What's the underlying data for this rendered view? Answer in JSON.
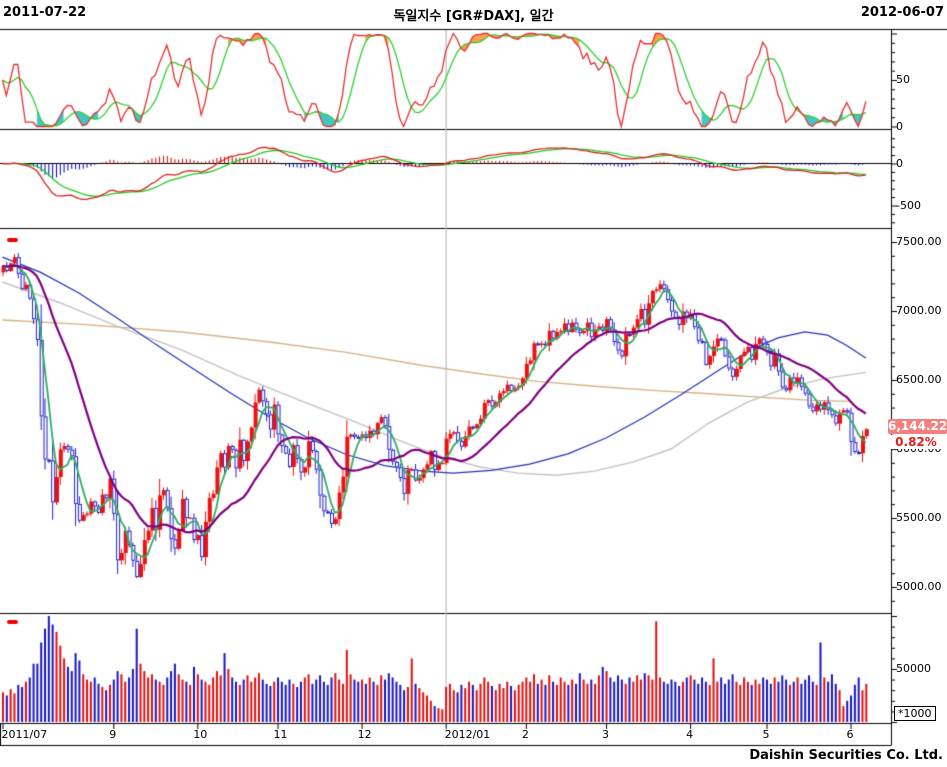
{
  "header": {
    "left_date": "2011-07-22",
    "title": "독일지수 [GR#DAX], 일간",
    "right_date": "2012-06-07"
  },
  "footer": {
    "company": "Daishin Securities Co. Ltd."
  },
  "price_badge": {
    "last_price": "6,144.22",
    "change_pct": "0.82%"
  },
  "volume_unit": "*1000",
  "chart_data": {
    "type": "candlestick-multi-panel",
    "instrument": "독일지수 [GR#DAX]",
    "period": "일간",
    "date_range": [
      "2011-07-22",
      "2012-06-07"
    ],
    "panels": [
      "stochastic-oscillator",
      "macd",
      "price-candles",
      "volume"
    ],
    "stoch_axis": {
      "labels": [
        {
          "text": "50",
          "v": 50
        },
        {
          "text": "0",
          "v": 0
        }
      ],
      "range": [
        0,
        100
      ]
    },
    "macd_axis": {
      "labels": [
        {
          "text": "0",
          "v": 0
        },
        {
          "text": "-500",
          "v": -500
        }
      ]
    },
    "price_axis": {
      "labels": [
        {
          "text": "7500.00",
          "v": 7500
        },
        {
          "text": "7000.00",
          "v": 7000
        },
        {
          "text": "6500.00",
          "v": 6500
        },
        {
          "text": "6000.00",
          "v": 6000
        },
        {
          "text": "5500.00",
          "v": 5500
        },
        {
          "text": "5000.00",
          "v": 5000
        }
      ]
    },
    "volume_axis": {
      "labels": [
        {
          "text": "50000",
          "v": 50
        }
      ]
    },
    "x_axis": {
      "year_divider_index": 116,
      "labels": [
        {
          "text": "2011/07",
          "i": 0,
          "align": "left"
        },
        {
          "text": "9",
          "i": 29
        },
        {
          "text": "10",
          "i": 51
        },
        {
          "text": "11",
          "i": 72
        },
        {
          "text": "12",
          "i": 94
        },
        {
          "text": "2012/01",
          "i": 116,
          "align": "left"
        },
        {
          "text": "2",
          "i": 137
        },
        {
          "text": "3",
          "i": 158
        },
        {
          "text": "4",
          "i": 180
        },
        {
          "text": "5",
          "i": 200
        },
        {
          "text": "6",
          "i": 222
        }
      ]
    },
    "closes": [
      7326,
      7290,
      7345,
      7390,
      7270,
      7158,
      7190,
      7090,
      6940,
      6790,
      6236,
      5923,
      5917,
      5613,
      5797,
      5997,
      6022,
      5995,
      5948,
      5602,
      5480,
      5522,
      5532,
      5620,
      5584,
      5537,
      5670,
      5643,
      5785,
      5530,
      5193,
      5246,
      5408,
      5304,
      5190,
      5072,
      5166,
      5340,
      5408,
      5573,
      5415,
      5664,
      5702,
      5571,
      5346,
      5278,
      5405,
      5639,
      5499,
      5502,
      5340,
      5376,
      5216,
      5473,
      5645,
      5675,
      5867,
      5970,
      5865,
      6022,
      5994,
      5859,
      6067,
      5913,
      6055,
      6155,
      6337,
      6430,
      6346,
      6251,
      6141,
      6322,
      6106,
      6021,
      5966,
      5870,
      6028,
      5928,
      5829,
      5867,
      6057,
      5985,
      5850,
      5662,
      5548,
      5537,
      5457,
      5492,
      5685,
      5800,
      6089,
      6105,
      6088,
      6080,
      6106,
      6080,
      6133,
      6106,
      6188,
      6231,
      6166,
      5994,
      5907,
      5867,
      5790,
      5675,
      5847,
      5852,
      5771,
      5790,
      5852,
      5889,
      5986,
      5848,
      5898,
      5898,
      6075,
      6111,
      6122,
      6058,
      6017,
      6092,
      6163,
      6152,
      6179,
      6220,
      6333,
      6354,
      6308,
      6339,
      6404,
      6419,
      6466,
      6419,
      6444,
      6459,
      6512,
      6617,
      6642,
      6766,
      6754,
      6764,
      6749,
      6856,
      6800,
      6848,
      6856,
      6910,
      6848,
      6916,
      6865,
      6840,
      6856,
      6916,
      6810,
      6865,
      6888,
      6856,
      6941,
      6866,
      6775,
      6714,
      6671,
      6834,
      6828,
      6880,
      6941,
      7015,
      6901,
      7056,
      7145,
      7157,
      7194,
      7158,
      7079,
      6996,
      6948,
      6899,
      6996,
      6947,
      6982,
      6882,
      6784,
      6775,
      6610,
      6674,
      6743,
      6801,
      6793,
      6671,
      6583,
      6523,
      6580,
      6674,
      6705,
      6739,
      6646,
      6761,
      6801,
      6762,
      6710,
      6598,
      6694,
      6561,
      6445,
      6425,
      6519,
      6476,
      6518,
      6451,
      6401,
      6308,
      6273,
      6324,
      6285,
      6339,
      6280,
      6244,
      6184,
      6264,
      6281,
      6264,
      6050,
      5978,
      5969,
      6094,
      6144
    ],
    "volumes_k": [
      28,
      25,
      31,
      27,
      35,
      33,
      38,
      42,
      55,
      55,
      75,
      88,
      100,
      92,
      85,
      72,
      60,
      52,
      48,
      65,
      58,
      45,
      40,
      38,
      42,
      36,
      33,
      30,
      35,
      40,
      48,
      45,
      38,
      42,
      50,
      88,
      55,
      48,
      42,
      45,
      40,
      38,
      35,
      42,
      48,
      55,
      45,
      40,
      38,
      35,
      52,
      45,
      40,
      38,
      35,
      42,
      48,
      44,
      65,
      50,
      42,
      38,
      35,
      40,
      44,
      38,
      42,
      46,
      40,
      36,
      34,
      38,
      42,
      38,
      35,
      40,
      36,
      33,
      38,
      42,
      45,
      36,
      40,
      44,
      38,
      35,
      42,
      46,
      40,
      36,
      68,
      45,
      40,
      38,
      40,
      36,
      42,
      38,
      35,
      44,
      40,
      46,
      42,
      38,
      35,
      30,
      33,
      60,
      36,
      32,
      28,
      25,
      20,
      15,
      13,
      12,
      33,
      36,
      30,
      28,
      35,
      32,
      38,
      35,
      30,
      36,
      42,
      38,
      34,
      30,
      36,
      32,
      38,
      34,
      30,
      35,
      38,
      42,
      38,
      45,
      36,
      40,
      35,
      44,
      38,
      35,
      42,
      38,
      35,
      40,
      36,
      46,
      40,
      36,
      40,
      36,
      44,
      52,
      48,
      42,
      38,
      44,
      40,
      36,
      42,
      38,
      44,
      40,
      46,
      44,
      40,
      95,
      42,
      38,
      36,
      40,
      38,
      34,
      38,
      42,
      44,
      40,
      36,
      42,
      38,
      35,
      60,
      38,
      42,
      36,
      40,
      45,
      38,
      35,
      42,
      38,
      35,
      40,
      36,
      42,
      40,
      36,
      42,
      38,
      44,
      40,
      35,
      38,
      42,
      36,
      40,
      44,
      38,
      35,
      75,
      42,
      38,
      45,
      36,
      30,
      15,
      20,
      25,
      35,
      42,
      30,
      36
    ],
    "ma_lines": {
      "short_green_period": 5,
      "mid_purple_period": 20,
      "blue": [
        [
          0,
          7390
        ],
        [
          10,
          7280
        ],
        [
          20,
          7130
        ],
        [
          30,
          6950
        ],
        [
          40,
          6760
        ],
        [
          50,
          6580
        ],
        [
          60,
          6400
        ],
        [
          70,
          6230
        ],
        [
          80,
          6080
        ],
        [
          90,
          5960
        ],
        [
          100,
          5880
        ],
        [
          110,
          5840
        ],
        [
          118,
          5825
        ],
        [
          128,
          5845
        ],
        [
          138,
          5890
        ],
        [
          148,
          5965
        ],
        [
          158,
          6080
        ],
        [
          168,
          6230
        ],
        [
          178,
          6400
        ],
        [
          188,
          6580
        ],
        [
          196,
          6720
        ],
        [
          203,
          6805
        ],
        [
          210,
          6848
        ],
        [
          216,
          6825
        ],
        [
          221,
          6750
        ],
        [
          226,
          6660
        ]
      ],
      "gray": [
        [
          0,
          7210
        ],
        [
          15,
          7060
        ],
        [
          30,
          6890
        ],
        [
          47,
          6717
        ],
        [
          62,
          6530
        ],
        [
          78,
          6350
        ],
        [
          92,
          6200
        ],
        [
          105,
          6050
        ],
        [
          115,
          5945
        ],
        [
          125,
          5870
        ],
        [
          135,
          5825
        ],
        [
          145,
          5810
        ],
        [
          155,
          5840
        ],
        [
          165,
          5905
        ],
        [
          175,
          6000
        ],
        [
          185,
          6190
        ],
        [
          195,
          6340
        ],
        [
          205,
          6440
        ],
        [
          215,
          6510
        ],
        [
          226,
          6555
        ]
      ],
      "tan": [
        [
          0,
          6935
        ],
        [
          20,
          6905
        ],
        [
          47,
          6848
        ],
        [
          70,
          6775
        ],
        [
          90,
          6700
        ],
        [
          110,
          6605
        ],
        [
          125,
          6545
        ],
        [
          140,
          6490
        ],
        [
          155,
          6455
        ],
        [
          170,
          6425
        ],
        [
          185,
          6400
        ],
        [
          200,
          6372
        ],
        [
          212,
          6352
        ],
        [
          222,
          6345
        ]
      ]
    },
    "indicator_params": {
      "stochastic": [
        14,
        3,
        6
      ],
      "macd": [
        12,
        26,
        9
      ]
    },
    "colors": {
      "candle_up": "#ee1111",
      "candle_down": "#2222cc",
      "ma_short": "#2fae60",
      "ma_mid": "#800080",
      "ma_blue": "#2233bb",
      "ma_gray": "#c3c3c3",
      "ma_tan": "#d7b284",
      "stoch_fast": "#e83030",
      "stoch_slow": "#30d030",
      "fill_overbought": "#ffa050",
      "fill_oversold": "#40c8c8",
      "macd_line": "#dd2222",
      "macd_signal": "#22cc22",
      "hist_pos": "#cc0000",
      "hist_neg": "#0000bb",
      "vol_up": "#e01010",
      "vol_down": "#1818c0",
      "badge_bg": "#f28080",
      "pct_text": "#e02020",
      "year_divider": "#b0b0b0",
      "marker_dash": "#ee0000"
    }
  }
}
